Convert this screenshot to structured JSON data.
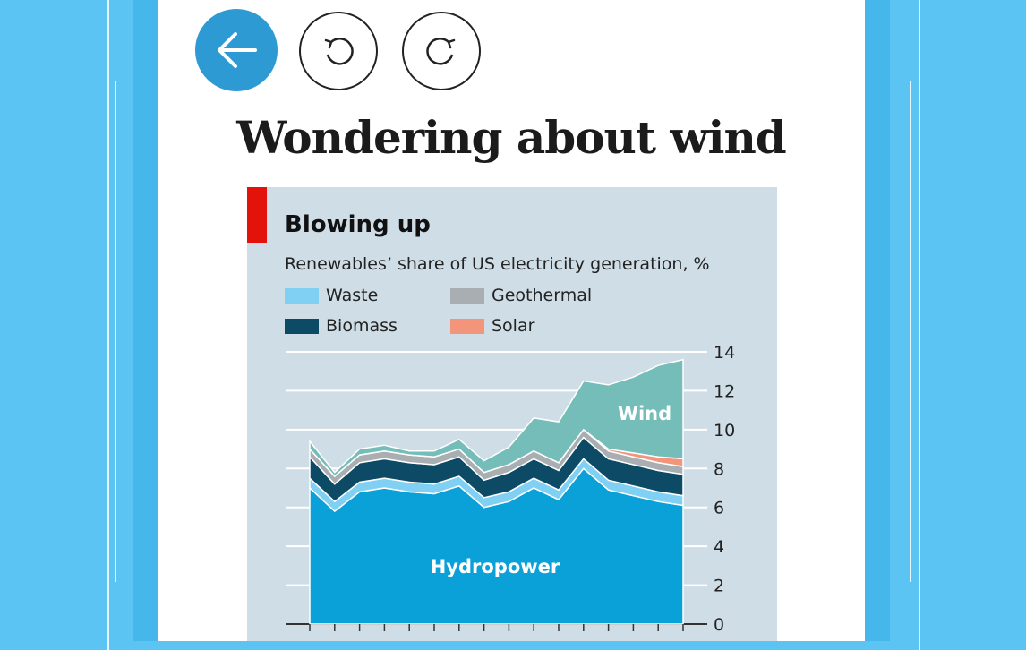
{
  "nav": {
    "back_label": "Back",
    "undo_label": "Undo",
    "redo_label": "Redo"
  },
  "article": {
    "title": "Wondering about wind"
  },
  "chart": {
    "headline": "Blowing up",
    "subtitle": "Renewables’ share of US electricity generation, %",
    "legend": [
      {
        "label": "Waste",
        "color": "#7fd0f3"
      },
      {
        "label": "Geothermal",
        "color": "#a9aeb2"
      },
      {
        "label": "Biomass",
        "color": "#0d4a66"
      },
      {
        "label": "Solar",
        "color": "#f2957a"
      }
    ],
    "annotations": {
      "hydro": "Hydropower",
      "wind": "Wind"
    }
  },
  "chart_data": {
    "type": "area",
    "title": "Blowing up",
    "subtitle": "Renewables’ share of US electricity generation, %",
    "ylim": [
      0,
      14
    ],
    "yticks": [
      "0",
      "2",
      "4",
      "6",
      "8",
      "10",
      "12",
      "14"
    ],
    "x": [
      0,
      1,
      2,
      3,
      4,
      5,
      6,
      7,
      8,
      9,
      10,
      11,
      12,
      13,
      14,
      15
    ],
    "series": [
      {
        "name": "Hydropower",
        "color": "#0aa0d8",
        "values": [
          7.0,
          5.8,
          6.8,
          7.0,
          6.8,
          6.7,
          7.1,
          6.0,
          6.3,
          7.0,
          6.4,
          8.0,
          6.9,
          6.6,
          6.3,
          6.1
        ]
      },
      {
        "name": "Waste",
        "color": "#7fd0f3",
        "values": [
          0.5,
          0.5,
          0.5,
          0.5,
          0.5,
          0.5,
          0.5,
          0.5,
          0.5,
          0.5,
          0.5,
          0.5,
          0.5,
          0.5,
          0.5,
          0.5
        ]
      },
      {
        "name": "Biomass",
        "color": "#0d4a66",
        "values": [
          1.1,
          0.9,
          1.0,
          1.0,
          1.0,
          1.0,
          1.0,
          0.9,
          1.0,
          1.0,
          1.0,
          1.1,
          1.1,
          1.1,
          1.1,
          1.1
        ]
      },
      {
        "name": "Geothermal",
        "color": "#a9aeb2",
        "values": [
          0.4,
          0.4,
          0.4,
          0.4,
          0.4,
          0.4,
          0.4,
          0.4,
          0.4,
          0.4,
          0.4,
          0.4,
          0.4,
          0.4,
          0.4,
          0.4
        ]
      },
      {
        "name": "Solar",
        "color": "#f2957a",
        "values": [
          0.0,
          0.0,
          0.0,
          0.0,
          0.0,
          0.0,
          0.0,
          0.0,
          0.0,
          0.0,
          0.0,
          0.0,
          0.1,
          0.2,
          0.3,
          0.4
        ]
      },
      {
        "name": "Wind",
        "color": "#74bdb8",
        "values": [
          0.4,
          0.2,
          0.3,
          0.3,
          0.2,
          0.3,
          0.5,
          0.6,
          0.9,
          1.7,
          2.1,
          2.5,
          3.3,
          3.9,
          4.7,
          5.1
        ]
      }
    ]
  }
}
